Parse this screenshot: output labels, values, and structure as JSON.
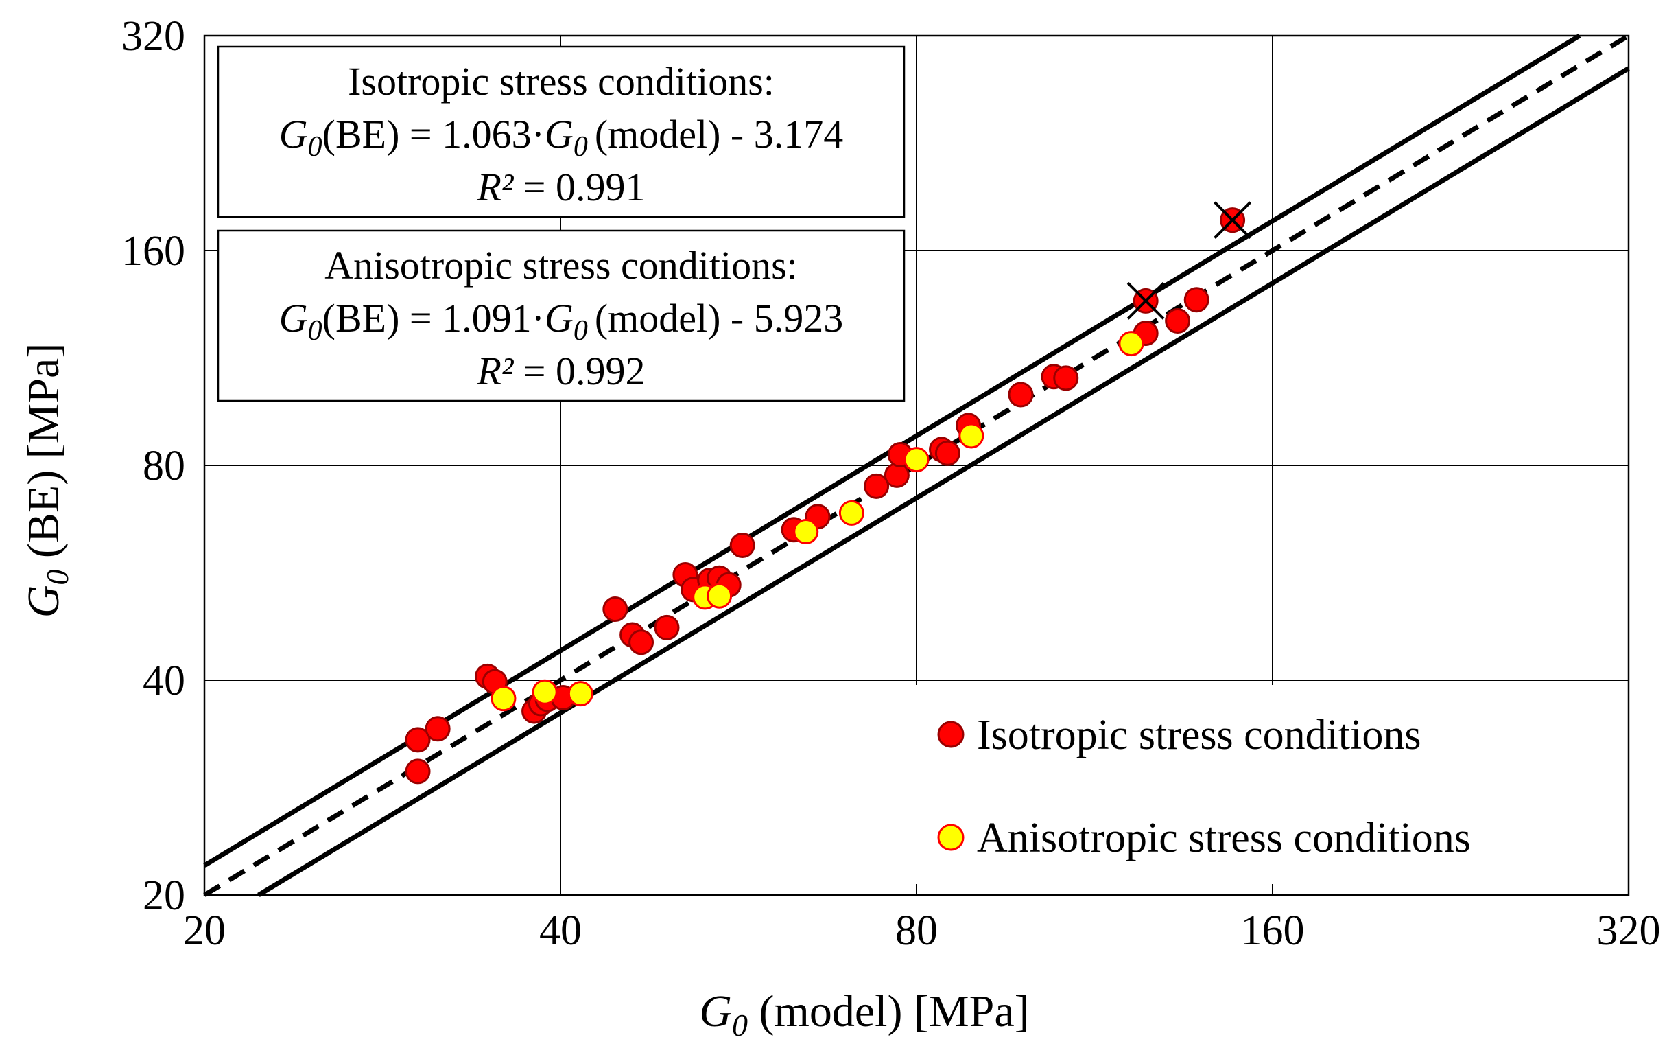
{
  "chart_data": {
    "type": "scatter",
    "x_scale": "log2",
    "y_scale": "log2",
    "xlim": [
      20,
      320
    ],
    "ylim": [
      20,
      320
    ],
    "x_ticks": [
      20,
      40,
      80,
      160,
      320
    ],
    "y_ticks": [
      20,
      40,
      80,
      160,
      320
    ],
    "x_tick_labels": [
      "20",
      "40",
      "80",
      "160",
      "320"
    ],
    "y_tick_labels": [
      "20",
      "40",
      "80",
      "160",
      "320"
    ],
    "grid": true,
    "xlabel": {
      "symbol": "G",
      "subscript": "0",
      "rest": " (model) [MPa]"
    },
    "ylabel": {
      "symbol": "G",
      "subscript": "0",
      "rest": " (BE) [MPa]"
    },
    "legend_position": "bottom-right",
    "series": [
      {
        "name": "Isotropic stress conditions",
        "fill": "#ff0000",
        "stroke": "#990000",
        "points": [
          [
            30.3,
            33.0
          ],
          [
            30.3,
            29.8
          ],
          [
            31.5,
            34.2
          ],
          [
            34.7,
            40.5
          ],
          [
            35.2,
            39.8
          ],
          [
            38.0,
            36.2
          ],
          [
            38.5,
            37.1
          ],
          [
            39.0,
            37.6
          ],
          [
            40.2,
            37.8
          ],
          [
            44.5,
            50.3
          ],
          [
            46.0,
            46.3
          ],
          [
            46.8,
            45.2
          ],
          [
            49.2,
            47.4
          ],
          [
            51.0,
            56.2
          ],
          [
            51.8,
            53.6
          ],
          [
            53.5,
            55.2
          ],
          [
            54.5,
            55.6
          ],
          [
            55.5,
            54.4
          ],
          [
            57.0,
            61.8
          ],
          [
            63.0,
            65.0
          ],
          [
            66.0,
            67.8
          ],
          [
            74.0,
            74.8
          ],
          [
            77.0,
            77.5
          ],
          [
            77.5,
            82.8
          ],
          [
            84.0,
            84.2
          ],
          [
            85.0,
            83.2
          ],
          [
            88.5,
            91.0
          ],
          [
            98.0,
            100.5
          ],
          [
            104.5,
            106.5
          ],
          [
            107.0,
            106.0
          ],
          [
            125.0,
            122.5
          ],
          [
            125.0,
            136.0
          ],
          [
            133.0,
            127.5
          ],
          [
            138.0,
            136.5
          ],
          [
            148.0,
            176.5
          ]
        ],
        "excluded_points": [
          [
            125.0,
            136.0
          ],
          [
            148.0,
            176.5
          ]
        ]
      },
      {
        "name": "Anisotropic stress conditions",
        "fill": "#ffff00",
        "stroke": "#ff0000",
        "points": [
          [
            35.8,
            37.7
          ],
          [
            38.8,
            38.5
          ],
          [
            41.6,
            38.3
          ],
          [
            53.0,
            52.3
          ],
          [
            54.5,
            52.5
          ],
          [
            64.5,
            64.6
          ],
          [
            70.5,
            68.6
          ],
          [
            80.0,
            81.5
          ],
          [
            89.0,
            88.0
          ],
          [
            121.5,
            118.5
          ]
        ]
      }
    ],
    "reference_lines": [
      {
        "name": "1:1 line",
        "style": "dashed",
        "factor": 1.0
      },
      {
        "name": "+10% bound",
        "style": "solid",
        "factor": 1.1
      },
      {
        "name": "-10% bound",
        "style": "solid",
        "factor": 0.9
      }
    ],
    "annotations": [
      {
        "title": "Isotropic stress conditions:",
        "eq_symbol": "G",
        "eq_subscript": "0",
        "eq_lhs_rest": "(BE) = 1.063·",
        "eq_rhs_rest": "(model) - 3.174",
        "r2_symbol": "R²",
        "r2_rest": " = 0.991"
      },
      {
        "title": "Anisotropic stress conditions:",
        "eq_symbol": "G",
        "eq_subscript": "0",
        "eq_lhs_rest": "(BE) = 1.091·",
        "eq_rhs_rest": "(model) - 5.923",
        "r2_symbol": "R²",
        "r2_rest": " = 0.992"
      }
    ]
  }
}
